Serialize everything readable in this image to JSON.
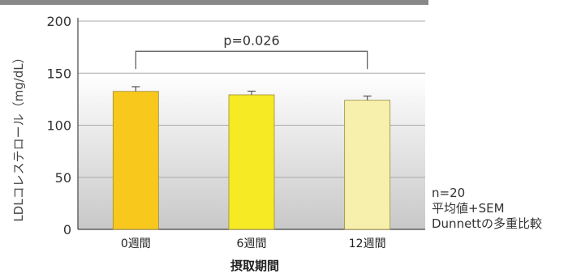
{
  "chart_data": {
    "type": "bar",
    "categories": [
      "0週間",
      "6週間",
      "12週間"
    ],
    "values": [
      132.5,
      129.2,
      124.0
    ],
    "error_bars": [
      4.5,
      3.5,
      4.0
    ],
    "bar_colors": [
      "#f8c81c",
      "#f6ea24",
      "#f6f0ac"
    ],
    "ylabel": "LDLコレステロール（mg/dL）",
    "xlabel": "摂取期間",
    "ylim": [
      0,
      200
    ],
    "yticks": [
      0,
      50,
      100,
      150,
      200
    ],
    "grid": true,
    "annotation": {
      "text": "p=0.026",
      "from_category": "0週間",
      "to_category": "12週間",
      "bracket_y": 171
    }
  },
  "notes": {
    "n": "n=20",
    "stat": "平均値+SEM",
    "test": "Dunnettの多重比較"
  }
}
